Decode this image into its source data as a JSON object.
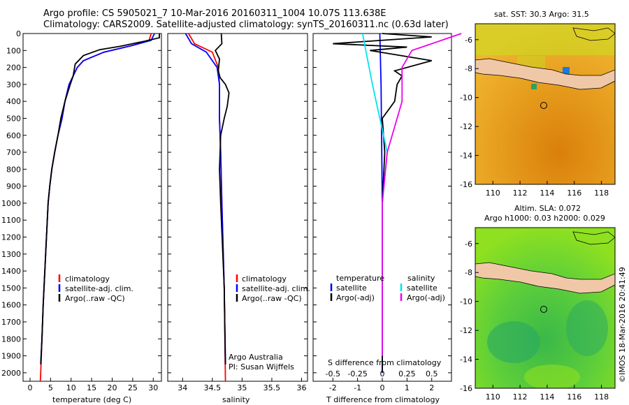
{
  "header": {
    "line1": "Argo profile: CS 5905021_7 10-Mar-2016 20160311_1004 10.07S 113.638E",
    "line2": "Climatology: CARS2009. Satellite-adjusted climatology: synTS_20160311.nc (0.63d later)"
  },
  "credit": "©IMOS 18-Mar-2016 20:41:49",
  "map_top": {
    "title": "sat. SST: 30.3  Argo: 31.5",
    "xticks": [
      "110",
      "112",
      "114",
      "116",
      "118"
    ],
    "yticks": [
      "-6",
      "-8",
      "-10",
      "-12",
      "-14",
      "-16"
    ]
  },
  "map_bottom": {
    "title1": "Altim. SLA: 0.072",
    "title2": "Argo h1000: 0.03 h2000: 0.029",
    "xticks": [
      "110",
      "112",
      "114",
      "116",
      "118"
    ],
    "yticks": [
      "-6",
      "-8",
      "-10",
      "-12",
      "-14",
      "-16"
    ]
  },
  "colors": {
    "clim": "#ff0000",
    "sat": "#0000ff",
    "argo": "#000000",
    "sat_s": "#00e5ee",
    "argo_s": "#ee00ee",
    "land": "#f0c8a8"
  },
  "chart_data": [
    {
      "type": "line",
      "xlabel": "temperature (deg C)",
      "xticks": [
        "0",
        "5",
        "10",
        "15",
        "20",
        "25",
        "30"
      ],
      "ylim": [
        2050,
        0
      ],
      "yticks": [
        "0",
        "100",
        "200",
        "300",
        "400",
        "500",
        "600",
        "700",
        "800",
        "900",
        "1000",
        "1100",
        "1200",
        "1300",
        "1400",
        "1500",
        "1600",
        "1700",
        "1800",
        "1900",
        "2000"
      ],
      "legend": [
        "climatology",
        "satellite-adj. clim.",
        "Argo(..raw -QC)"
      ],
      "series": [
        {
          "name": "climatology",
          "points": [
            [
              29.5,
              0
            ],
            [
              29,
              40
            ],
            [
              25,
              70
            ],
            [
              18,
              110
            ],
            [
              13,
              160
            ],
            [
              11.5,
              200
            ],
            [
              10.5,
              250
            ],
            [
              9.5,
              300
            ],
            [
              8.5,
              400
            ],
            [
              7.8,
              500
            ],
            [
              6.8,
              600
            ],
            [
              6,
              700
            ],
            [
              5.3,
              800
            ],
            [
              4.8,
              900
            ],
            [
              4.4,
              1000
            ],
            [
              4,
              1200
            ],
            [
              3.6,
              1400
            ],
            [
              3.2,
              1600
            ],
            [
              2.9,
              1800
            ],
            [
              2.6,
              2000
            ],
            [
              2.5,
              2050
            ]
          ]
        },
        {
          "name": "satellite-adj. clim.",
          "points": [
            [
              30.3,
              0
            ],
            [
              29.5,
              40
            ],
            [
              25,
              70
            ],
            [
              18,
              110
            ],
            [
              13,
              160
            ],
            [
              11.5,
              200
            ],
            [
              10.5,
              250
            ],
            [
              9.5,
              300
            ],
            [
              8.5,
              400
            ],
            [
              7.8,
              500
            ],
            [
              6.8,
              600
            ],
            [
              6,
              700
            ],
            [
              5.3,
              800
            ],
            [
              4.8,
              900
            ],
            [
              4.4,
              1000
            ],
            [
              4,
              1200
            ],
            [
              3.6,
              1400
            ],
            [
              3.2,
              1600
            ],
            [
              2.9,
              1800
            ],
            [
              2.6,
              1950
            ]
          ]
        },
        {
          "name": "Argo(..raw -QC)",
          "points": [
            [
              31.5,
              0
            ],
            [
              31.5,
              25
            ],
            [
              28,
              45
            ],
            [
              22,
              75
            ],
            [
              17,
              95
            ],
            [
              13,
              130
            ],
            [
              11,
              180
            ],
            [
              10.5,
              250
            ],
            [
              9.8,
              300
            ],
            [
              8.5,
              400
            ],
            [
              7.5,
              500
            ],
            [
              6.8,
              600
            ],
            [
              6,
              700
            ],
            [
              5.3,
              800
            ],
            [
              4.8,
              900
            ],
            [
              4.4,
              1000
            ],
            [
              4,
              1200
            ],
            [
              3.6,
              1400
            ],
            [
              3.2,
              1600
            ],
            [
              2.9,
              1800
            ],
            [
              2.6,
              1950
            ]
          ]
        }
      ]
    },
    {
      "type": "line",
      "xlabel": "salinity",
      "xticks": [
        "34",
        "34.5",
        "35",
        "35.5",
        "36"
      ],
      "ylim": [
        2050,
        0
      ],
      "legend": [
        "climatology",
        "satellite-adj. clim.",
        "Argo(..raw -QC)"
      ],
      "annotations": [
        "Argo Australia",
        "PI: Susan Wijffels"
      ],
      "series": [
        {
          "name": "climatology",
          "points": [
            [
              34.1,
              0
            ],
            [
              34.2,
              60
            ],
            [
              34.5,
              110
            ],
            [
              34.6,
              200
            ],
            [
              34.62,
              300
            ],
            [
              34.62,
              500
            ],
            [
              34.64,
              700
            ],
            [
              34.66,
              1000
            ],
            [
              34.7,
              1500
            ],
            [
              34.72,
              2050
            ]
          ]
        },
        {
          "name": "satellite-adj. clim.",
          "points": [
            [
              34.05,
              0
            ],
            [
              34.15,
              60
            ],
            [
              34.4,
              110
            ],
            [
              34.58,
              200
            ],
            [
              34.62,
              300
            ],
            [
              34.62,
              500
            ],
            [
              34.64,
              700
            ],
            [
              34.66,
              1000
            ],
            [
              34.7,
              1500
            ],
            [
              34.72,
              1950
            ]
          ]
        },
        {
          "name": "Argo(..raw -QC)",
          "points": [
            [
              34.65,
              0
            ],
            [
              34.66,
              60
            ],
            [
              34.55,
              100
            ],
            [
              34.62,
              150
            ],
            [
              34.6,
              220
            ],
            [
              34.63,
              260
            ],
            [
              34.72,
              300
            ],
            [
              34.78,
              350
            ],
            [
              34.75,
              430
            ],
            [
              34.7,
              500
            ],
            [
              34.64,
              600
            ],
            [
              34.63,
              700
            ],
            [
              34.62,
              800
            ],
            [
              34.64,
              1000
            ],
            [
              34.7,
              1500
            ],
            [
              34.72,
              1950
            ]
          ]
        }
      ]
    },
    {
      "type": "line",
      "xlabel": "T difference from climatology",
      "xticks": [
        "-2",
        "-1",
        "0",
        "1",
        "2"
      ],
      "top_label": "S difference from climatology",
      "top_ticks": [
        "-0.5",
        "-0.25",
        "0",
        "0.25",
        "0.5"
      ],
      "legend": [
        "temperature",
        "satellite",
        "Argo(-adj)",
        "salinity",
        "satellite",
        "Argo(-adj)"
      ],
      "series": [
        {
          "name": "satellite",
          "points": [
            [
              -0.1,
              0
            ],
            [
              -0.05,
              300
            ],
            [
              0,
              1000
            ],
            [
              0,
              2000
            ]
          ]
        },
        {
          "name": "Argo(-adj)",
          "points": [
            [
              0,
              0
            ],
            [
              2,
              20
            ],
            [
              -2,
              60
            ],
            [
              1,
              80
            ],
            [
              -0.5,
              100
            ],
            [
              2,
              160
            ],
            [
              0.5,
              220
            ],
            [
              0.8,
              250
            ],
            [
              0.6,
              300
            ],
            [
              0.5,
              400
            ],
            [
              0,
              500
            ],
            [
              0.1,
              700
            ],
            [
              0,
              1000
            ],
            [
              0,
              2000
            ]
          ]
        },
        {
          "name": "satellite",
          "points": [
            [
              -0.2,
              0
            ],
            [
              -0.1,
              300
            ],
            [
              0.05,
              700
            ],
            [
              0,
              1000
            ],
            [
              0,
              1900
            ]
          ]
        },
        {
          "name": "Argo(-adj)",
          "points": [
            [
              0.8,
              0
            ],
            [
              0.3,
              100
            ],
            [
              0.2,
              200
            ],
            [
              0.2,
              400
            ],
            [
              0.15,
              500
            ],
            [
              0.05,
              700
            ],
            [
              0,
              1000
            ],
            [
              0,
              1900
            ]
          ]
        }
      ]
    }
  ]
}
